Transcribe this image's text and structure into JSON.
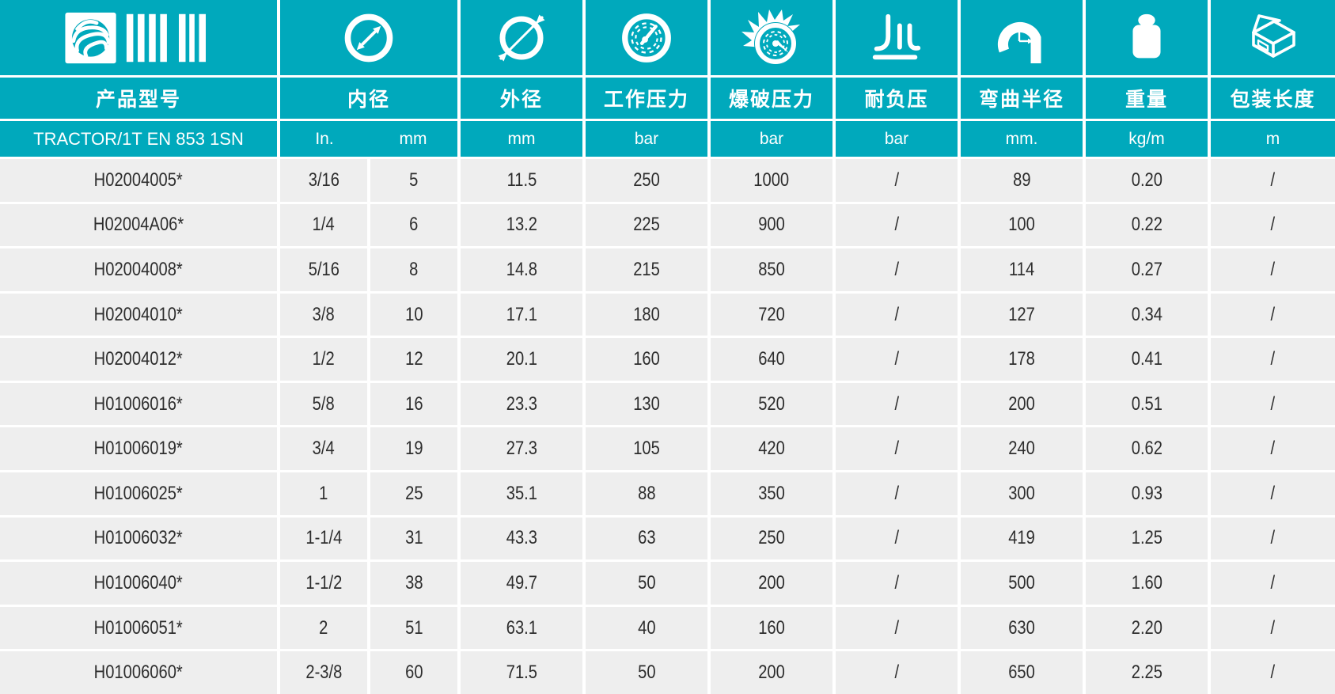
{
  "colors": {
    "teal": "#00a9bc",
    "row_bg": "#eeeeee",
    "text": "#2d2d2d",
    "header_text": "#ffffff"
  },
  "table": {
    "columns": [
      {
        "key": "model",
        "label": "产品型号",
        "unit": "TRACTOR/1T EN 853 1SN",
        "icon": "logo-barcode-icon"
      },
      {
        "key": "inner_diameter",
        "label": "内径",
        "unit_in": "In.",
        "unit_mm": "mm",
        "icon": "inner-diameter-icon"
      },
      {
        "key": "outer_diameter",
        "label": "外径",
        "unit": "mm",
        "icon": "outer-diameter-icon"
      },
      {
        "key": "working_pressure",
        "label": "工作压力",
        "unit": "bar",
        "icon": "pressure-gauge-icon"
      },
      {
        "key": "burst_pressure",
        "label": "爆破压力",
        "unit": "bar",
        "icon": "burst-gauge-icon"
      },
      {
        "key": "vacuum_resistance",
        "label": "耐负压",
        "unit": "bar",
        "icon": "vacuum-icon"
      },
      {
        "key": "bend_radius",
        "label": "弯曲半径",
        "unit": "mm.",
        "icon": "bend-radius-icon"
      },
      {
        "key": "weight",
        "label": "重量",
        "unit": "kg/m",
        "icon": "weight-icon"
      },
      {
        "key": "package_length",
        "label": "包装长度",
        "unit": "m",
        "icon": "package-box-icon"
      }
    ],
    "rows": [
      [
        "H02004005*",
        "3/16",
        "5",
        "11.5",
        "250",
        "1000",
        "/",
        "89",
        "0.20",
        "/"
      ],
      [
        "H02004A06*",
        "1/4",
        "6",
        "13.2",
        "225",
        "900",
        "/",
        "100",
        "0.22",
        "/"
      ],
      [
        "H02004008*",
        "5/16",
        "8",
        "14.8",
        "215",
        "850",
        "/",
        "114",
        "0.27",
        "/"
      ],
      [
        "H02004010*",
        "3/8",
        "10",
        "17.1",
        "180",
        "720",
        "/",
        "127",
        "0.34",
        "/"
      ],
      [
        "H02004012*",
        "1/2",
        "12",
        "20.1",
        "160",
        "640",
        "/",
        "178",
        "0.41",
        "/"
      ],
      [
        "H01006016*",
        "5/8",
        "16",
        "23.3",
        "130",
        "520",
        "/",
        "200",
        "0.51",
        "/"
      ],
      [
        "H01006019*",
        "3/4",
        "19",
        "27.3",
        "105",
        "420",
        "/",
        "240",
        "0.62",
        "/"
      ],
      [
        "H01006025*",
        "1",
        "25",
        "35.1",
        "88",
        "350",
        "/",
        "300",
        "0.93",
        "/"
      ],
      [
        "H01006032*",
        "1-1/4",
        "31",
        "43.3",
        "63",
        "250",
        "/",
        "419",
        "1.25",
        "/"
      ],
      [
        "H01006040*",
        "1-1/2",
        "38",
        "49.7",
        "50",
        "200",
        "/",
        "500",
        "1.60",
        "/"
      ],
      [
        "H01006051*",
        "2",
        "51",
        "63.1",
        "40",
        "160",
        "/",
        "630",
        "2.20",
        "/"
      ],
      [
        "H01006060*",
        "2-3/8",
        "60",
        "71.5",
        "50",
        "200",
        "/",
        "650",
        "2.25",
        "/"
      ]
    ]
  }
}
